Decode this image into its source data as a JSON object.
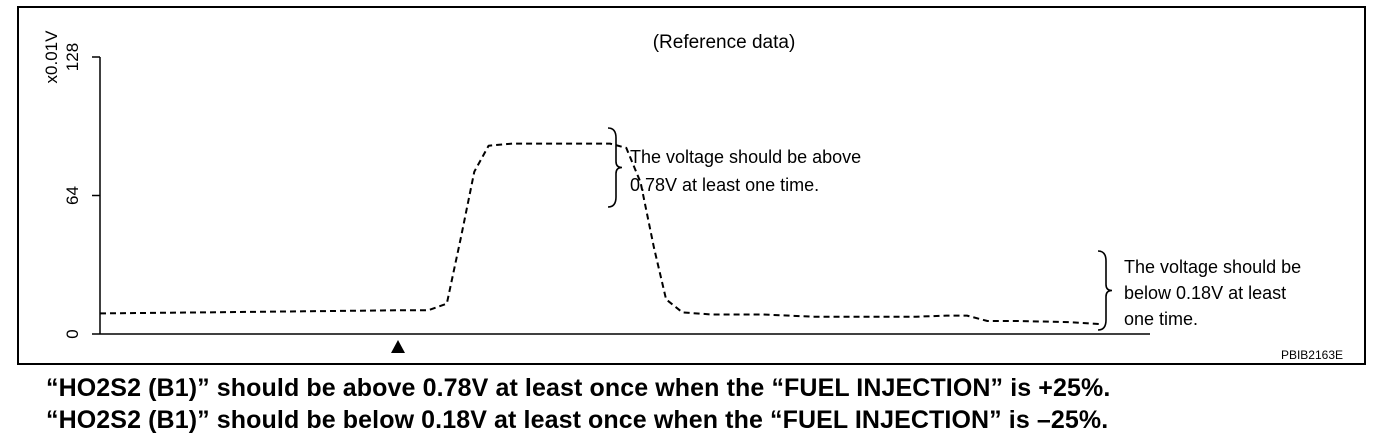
{
  "chart_data": {
    "type": "line",
    "title": "(Reference data)",
    "ylabel": "x0.01V",
    "ylim": [
      0,
      128
    ],
    "yticks": [
      0,
      64,
      128
    ],
    "ytick_labels": [
      "0",
      "64",
      "128"
    ],
    "xlim": [
      0,
      100
    ],
    "grid": false,
    "line_style": "dashed",
    "series": [
      {
        "x": [
          0,
          10,
          20,
          30,
          32.2,
          34.0,
          35.4,
          36.7,
          38.1,
          40.4,
          50,
          51.6,
          53.0,
          54.3,
          55.5,
          57.1,
          60,
          65,
          70,
          75,
          80,
          83,
          85,
          87,
          90,
          95,
          98.3
        ],
        "y": [
          9.5,
          10,
          10.5,
          11,
          11,
          14,
          45,
          75,
          87,
          88,
          88,
          86,
          70,
          40,
          16,
          10,
          9,
          9,
          8,
          8,
          8,
          8.5,
          8.5,
          6,
          6,
          5.5,
          4.5
        ]
      }
    ],
    "marker": "▲",
    "annotations": [
      {
        "lines": [
          "The voltage should be above",
          "0.78V at least one time."
        ]
      },
      {
        "lines": [
          "The voltage should be",
          "below 0.18V at least",
          "one time."
        ]
      }
    ],
    "figure_code": "PBIB2163E",
    "colors": {
      "line": "#000000",
      "axis": "#000000",
      "text": "#000000"
    }
  },
  "caption": {
    "line1": "“HO2S2 (B1)” should be above 0.78V at least once when the “FUEL INJECTION” is +25%.",
    "line2": "“HO2S2 (B1)” should be below 0.18V at least once when the “FUEL INJECTION” is –25%."
  }
}
